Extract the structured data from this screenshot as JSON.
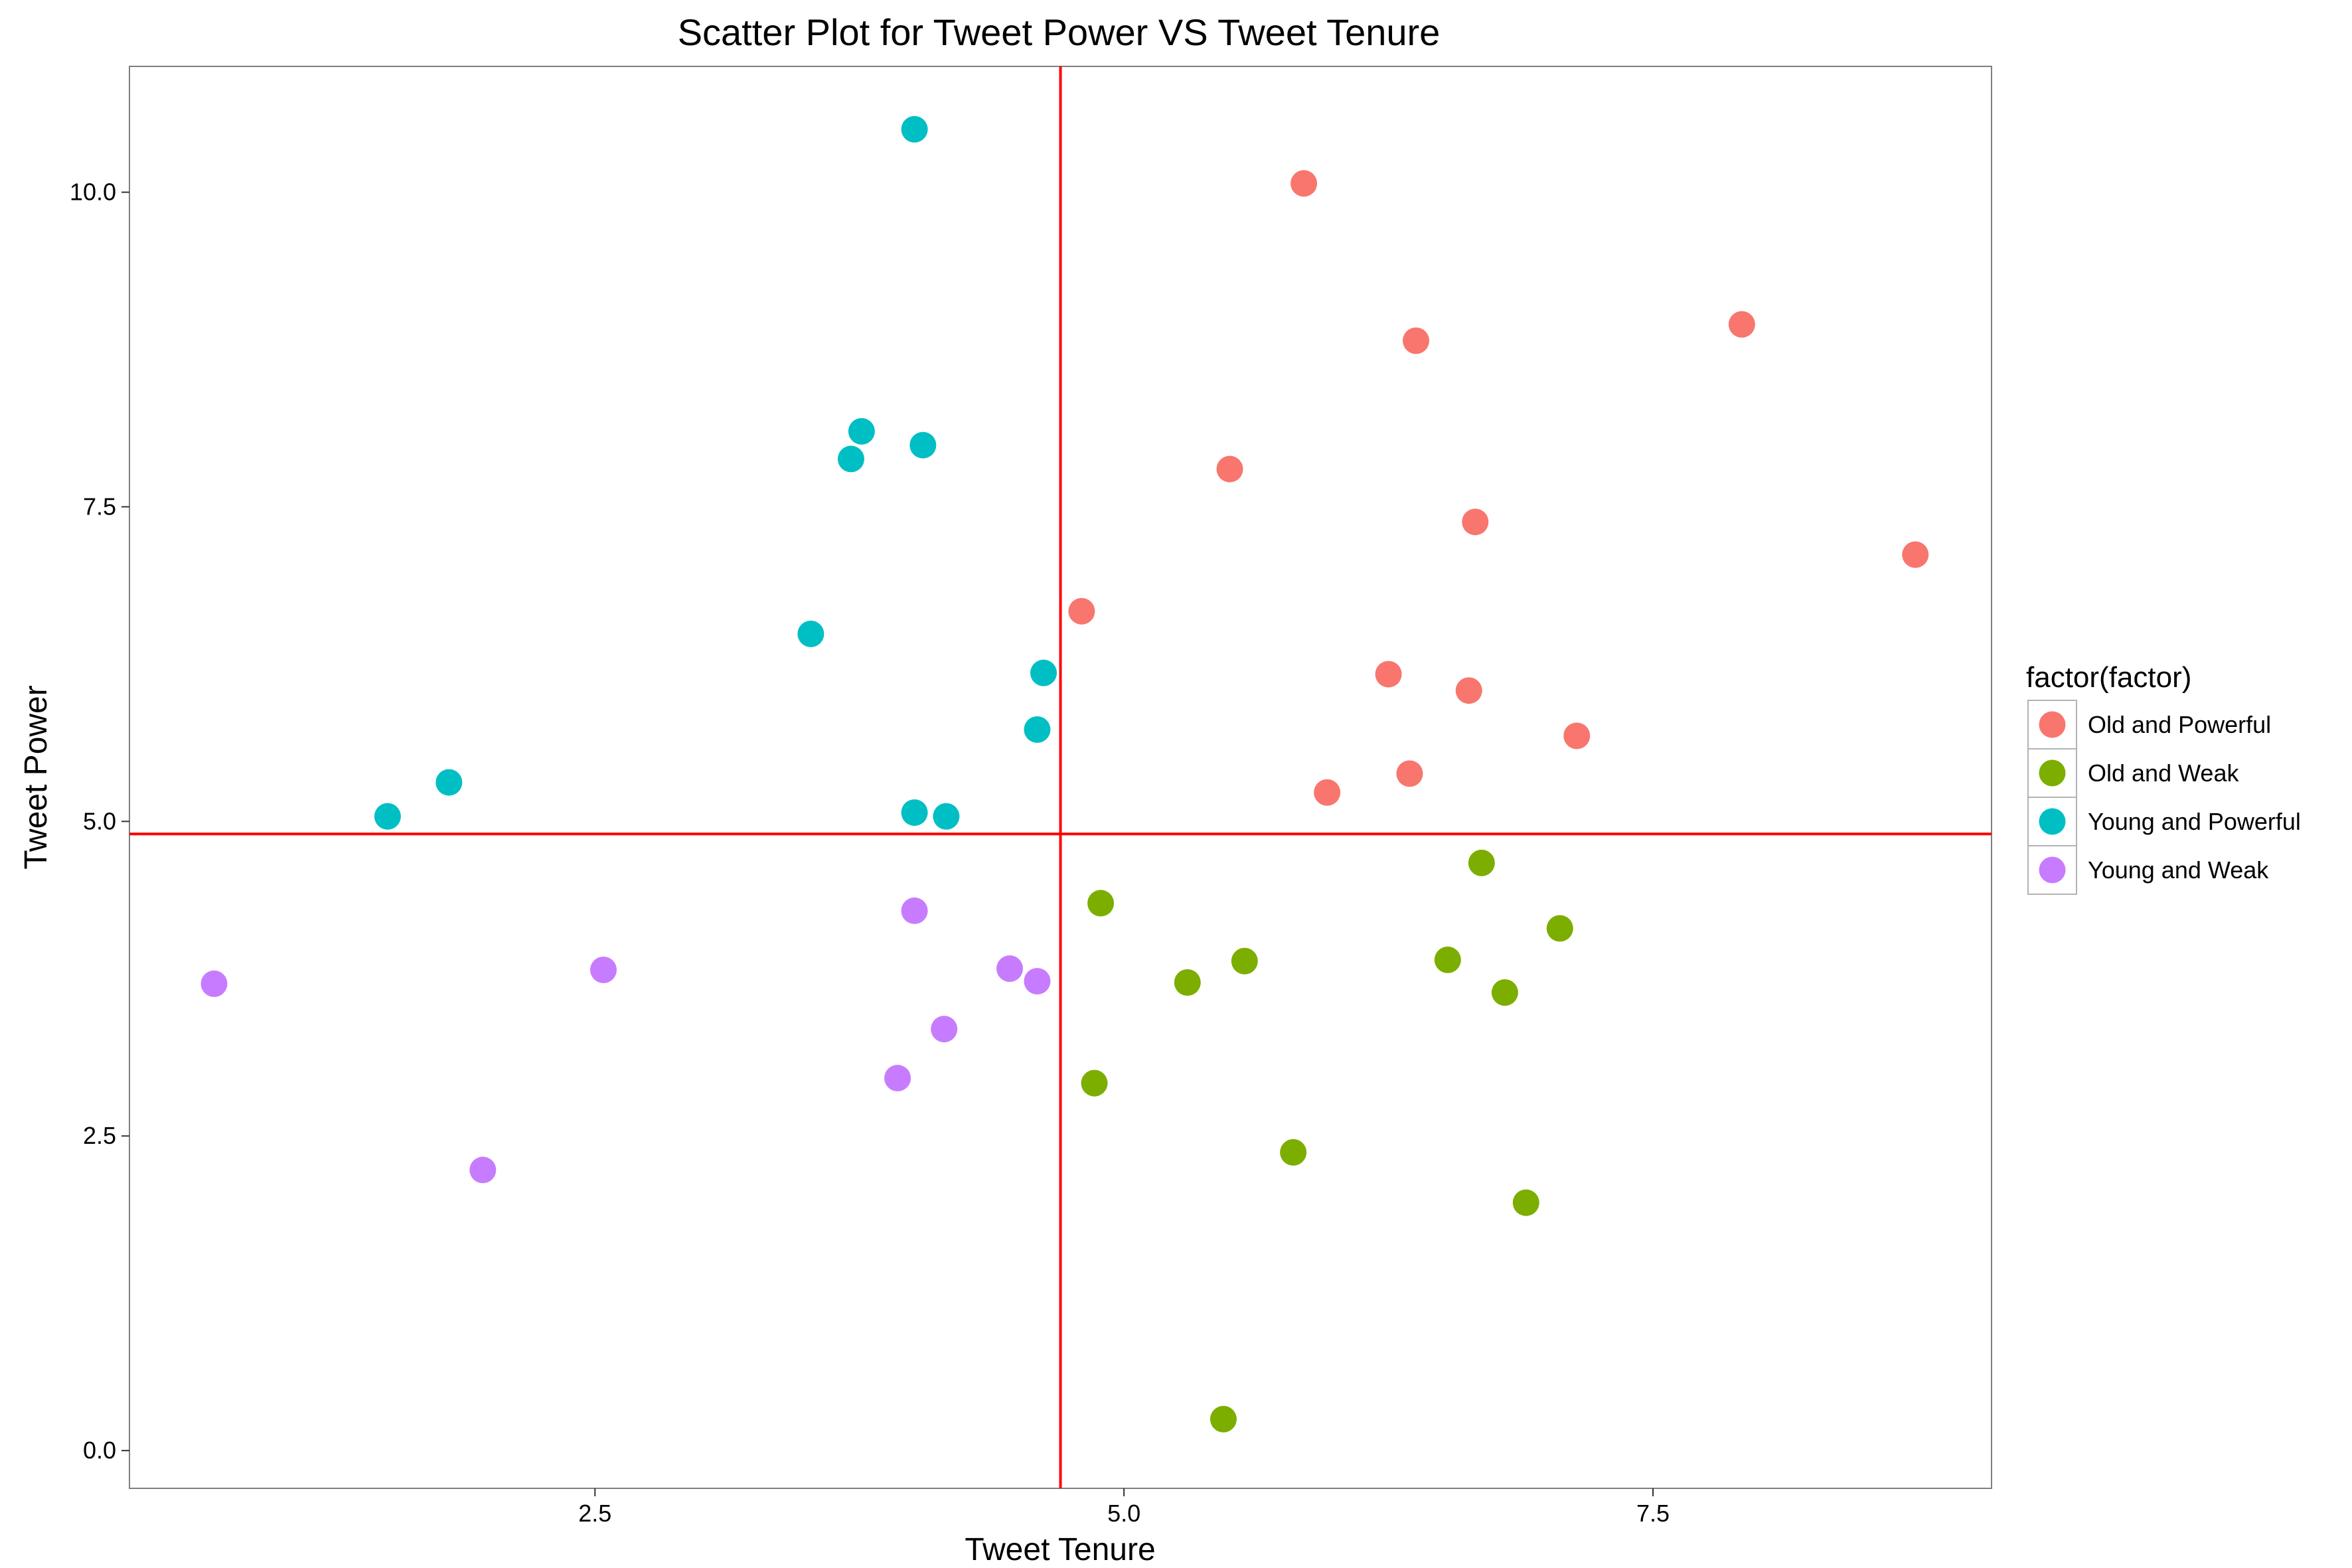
{
  "chart_data": {
    "type": "scatter",
    "title": "Scatter Plot for Tweet Power VS Tweet Tenure",
    "xlabel": "Tweet Tenure",
    "ylabel": "Tweet Power",
    "xlim": [
      0.3,
      9.1
    ],
    "ylim": [
      -0.3,
      11.0
    ],
    "xticks": [
      2.5,
      5.0,
      7.5
    ],
    "xtick_labels": [
      "2.5",
      "5.0",
      "7.5"
    ],
    "yticks": [
      0.0,
      2.5,
      5.0,
      7.5,
      10.0
    ],
    "ytick_labels": [
      "0.0",
      "2.5",
      "5.0",
      "7.5",
      "10.0"
    ],
    "grid": false,
    "reference_lines": {
      "color": "#ff0000",
      "vertical_x": 4.7,
      "horizontal_y": 4.9
    },
    "legend": {
      "title": "factor(factor)",
      "placement": "right"
    },
    "series": [
      {
        "name": "Old and Powerful",
        "color": "#F8766D",
        "points": [
          [
            5.85,
            10.07
          ],
          [
            6.38,
            8.82
          ],
          [
            7.92,
            8.95
          ],
          [
            5.5,
            7.8
          ],
          [
            6.66,
            7.38
          ],
          [
            8.74,
            7.12
          ],
          [
            4.8,
            6.67
          ],
          [
            6.25,
            6.17
          ],
          [
            6.63,
            6.04
          ],
          [
            7.14,
            5.68
          ],
          [
            6.35,
            5.38
          ],
          [
            5.96,
            5.23
          ]
        ]
      },
      {
        "name": "Old and Weak",
        "color": "#7CAE00",
        "points": [
          [
            6.69,
            4.67
          ],
          [
            4.89,
            4.35
          ],
          [
            7.06,
            4.15
          ],
          [
            6.53,
            3.9
          ],
          [
            5.57,
            3.89
          ],
          [
            5.3,
            3.72
          ],
          [
            6.8,
            3.64
          ],
          [
            4.86,
            2.92
          ],
          [
            5.8,
            2.37
          ],
          [
            6.9,
            1.97
          ],
          [
            5.47,
            0.25
          ]
        ]
      },
      {
        "name": "Young and Powerful",
        "color": "#00BFC4",
        "points": [
          [
            4.01,
            10.5
          ],
          [
            3.76,
            8.1
          ],
          [
            4.05,
            7.99
          ],
          [
            3.71,
            7.88
          ],
          [
            3.52,
            6.49
          ],
          [
            4.62,
            6.18
          ],
          [
            4.59,
            5.73
          ],
          [
            1.81,
            5.31
          ],
          [
            1.52,
            5.04
          ],
          [
            4.01,
            5.07
          ],
          [
            4.16,
            5.04
          ]
        ]
      },
      {
        "name": "Young and Weak",
        "color": "#C77CFF",
        "points": [
          [
            4.01,
            4.29
          ],
          [
            0.7,
            3.71
          ],
          [
            2.54,
            3.82
          ],
          [
            4.46,
            3.83
          ],
          [
            4.59,
            3.73
          ],
          [
            4.15,
            3.35
          ],
          [
            3.93,
            2.96
          ],
          [
            1.97,
            2.23
          ]
        ]
      }
    ]
  }
}
